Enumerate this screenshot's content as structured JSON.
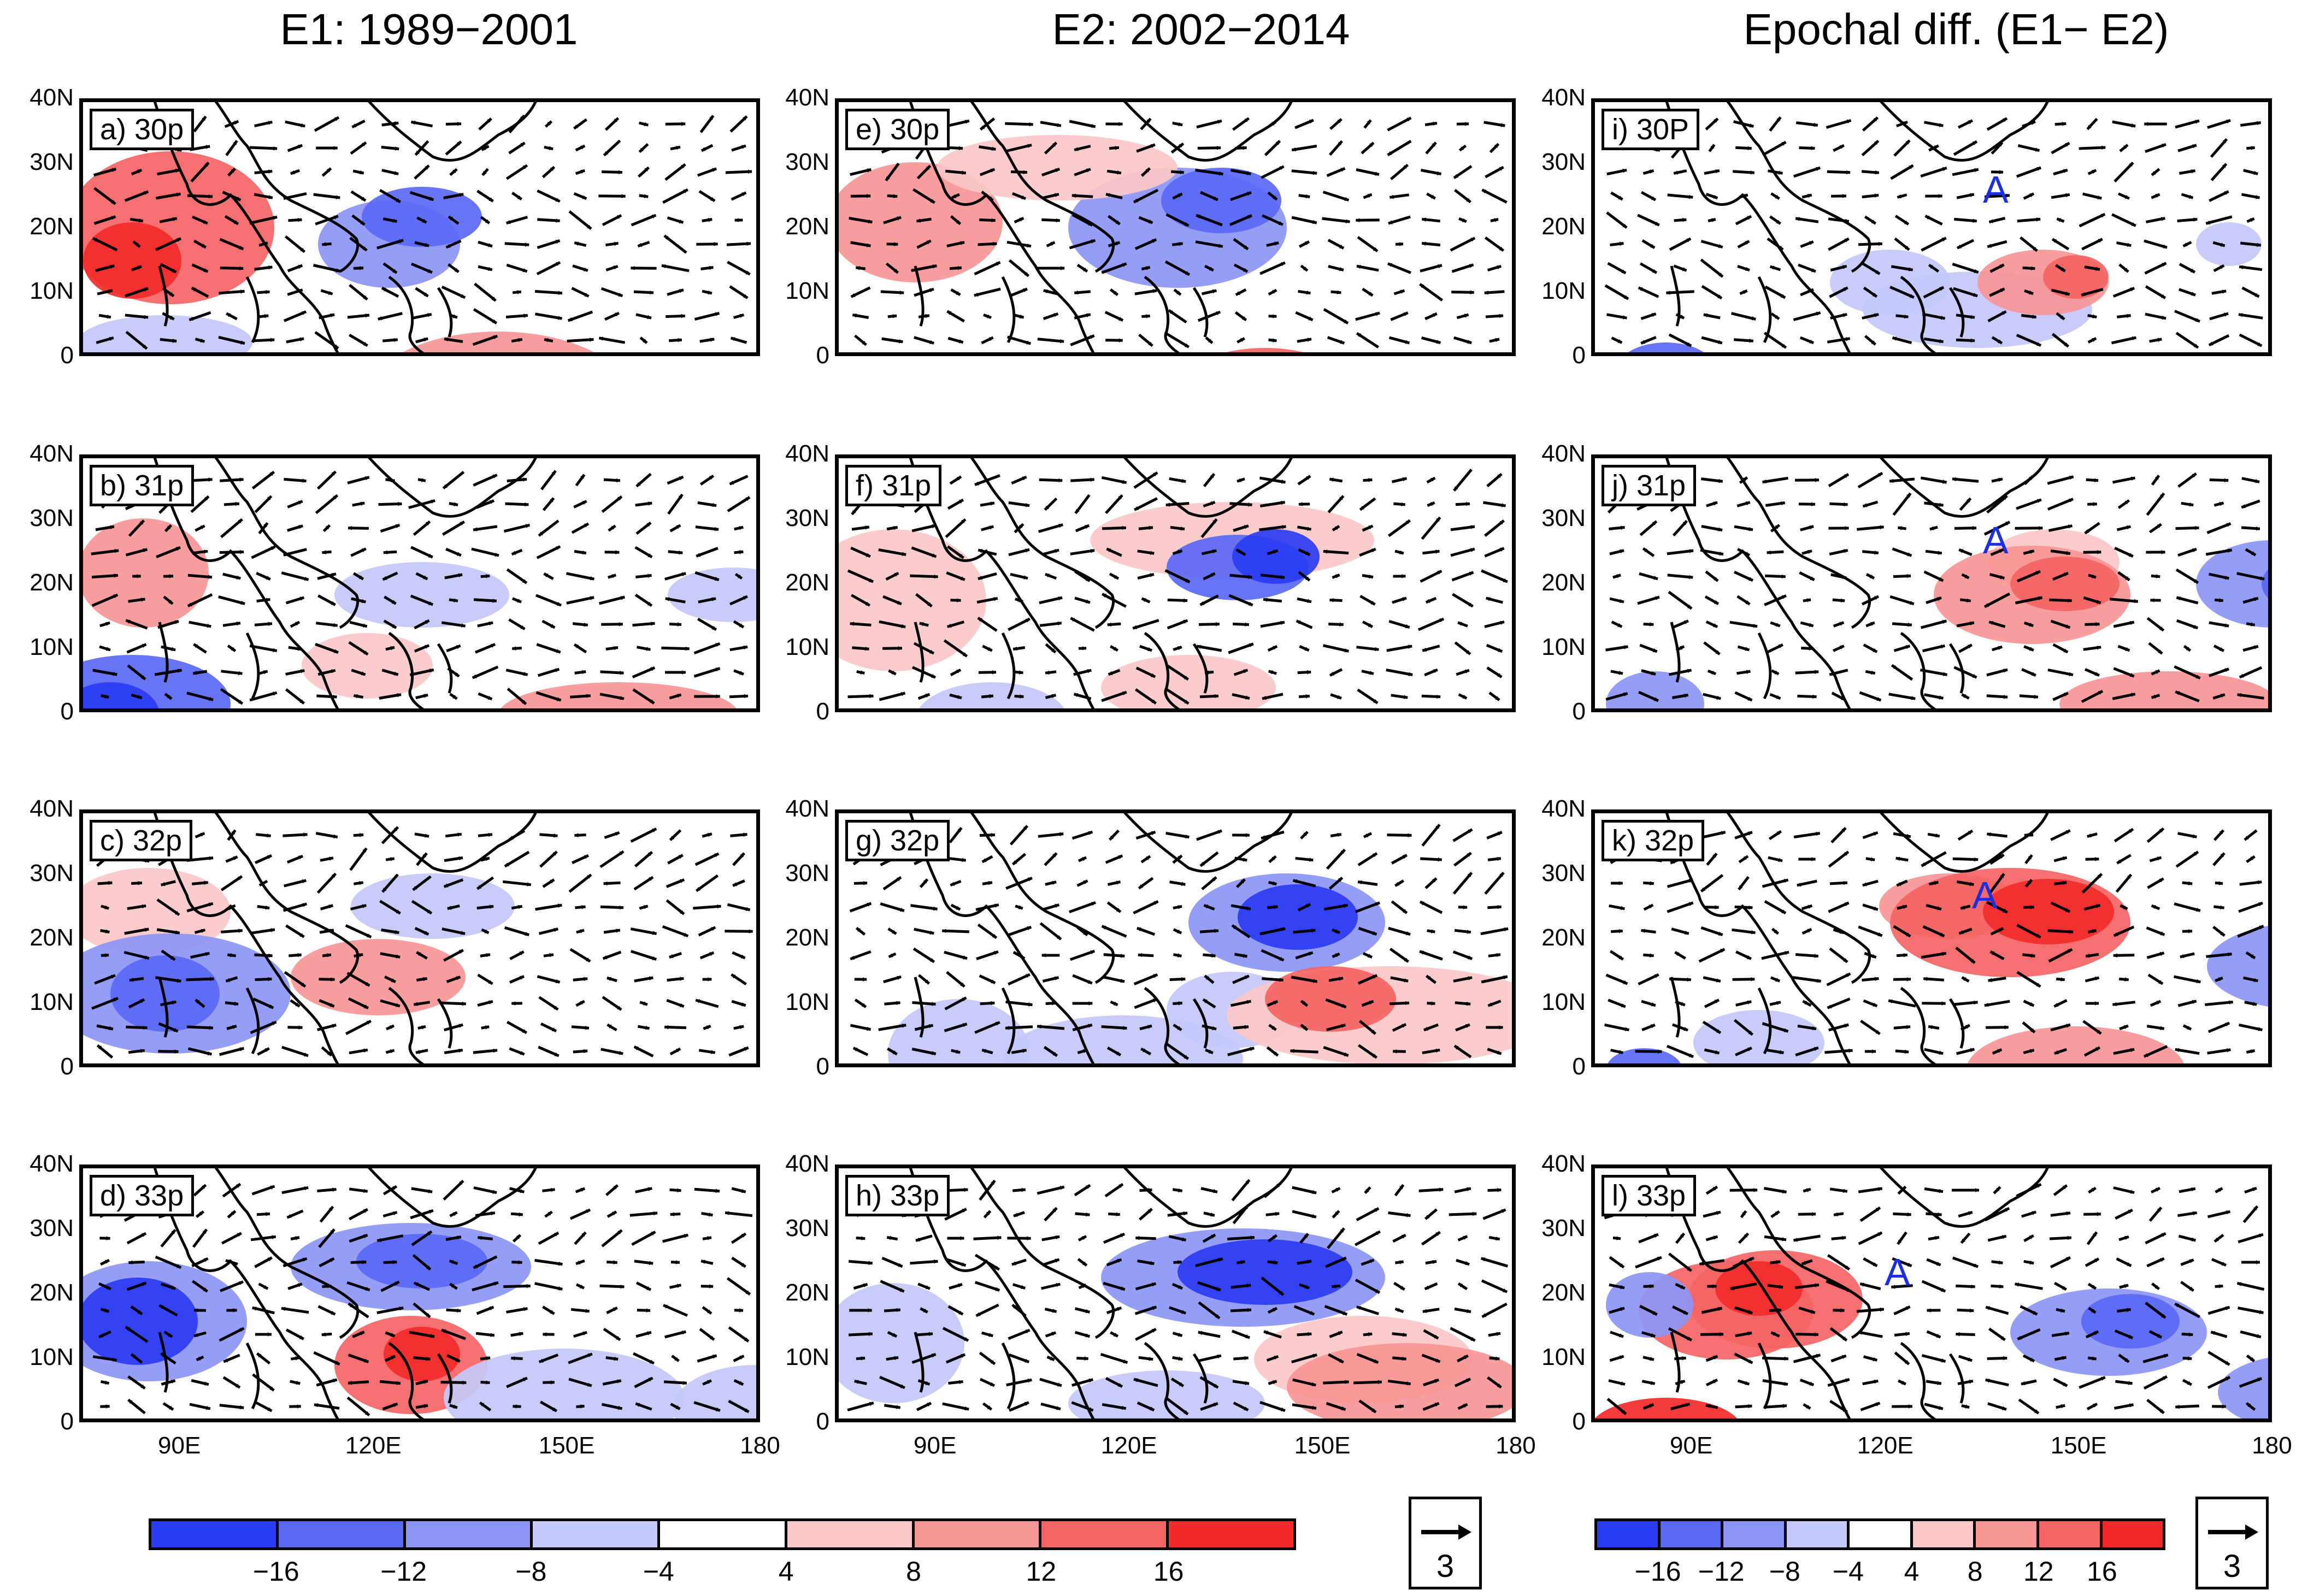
{
  "column_titles": [
    "E1: 1989−2001",
    "E2: 2002−2014",
    "Epochal diff. (E1− E2)"
  ],
  "panels": [
    {
      "label": "a) 30p"
    },
    {
      "label": "e) 30p"
    },
    {
      "label": "i) 30P"
    },
    {
      "label": "b) 31p"
    },
    {
      "label": "f) 31p"
    },
    {
      "label": "j) 31p"
    },
    {
      "label": "c) 32p"
    },
    {
      "label": "g) 32p"
    },
    {
      "label": "k) 32p"
    },
    {
      "label": "d) 33p"
    },
    {
      "label": "h) 33p"
    },
    {
      "label": "l) 33p"
    }
  ],
  "y_ticks": [
    "40N",
    "30N",
    "20N",
    "10N",
    "0"
  ],
  "x_ticks": [
    "90E",
    "120E",
    "150E",
    "180"
  ],
  "anomaly_marker": "A",
  "colorbar_left": {
    "labels": [
      "−16",
      "−12",
      "−8",
      "−4",
      "4",
      "8",
      "12",
      "16"
    ],
    "colors": [
      "#2a3cf2",
      "#5a68f4",
      "#8c95f6",
      "#c4c8fa",
      "#ffffff",
      "#fbc8c8",
      "#f79696",
      "#f46464",
      "#f22a2a"
    ]
  },
  "colorbar_right": {
    "labels": [
      "−16",
      "−12",
      "−8",
      "−4",
      "4",
      "8",
      "12",
      "16"
    ],
    "colors": [
      "#2a3cf2",
      "#5a68f4",
      "#8c95f6",
      "#c4c8fa",
      "#ffffff",
      "#fbc8c8",
      "#f79696",
      "#f46464",
      "#f22a2a"
    ]
  },
  "reference_vector": "3"
}
